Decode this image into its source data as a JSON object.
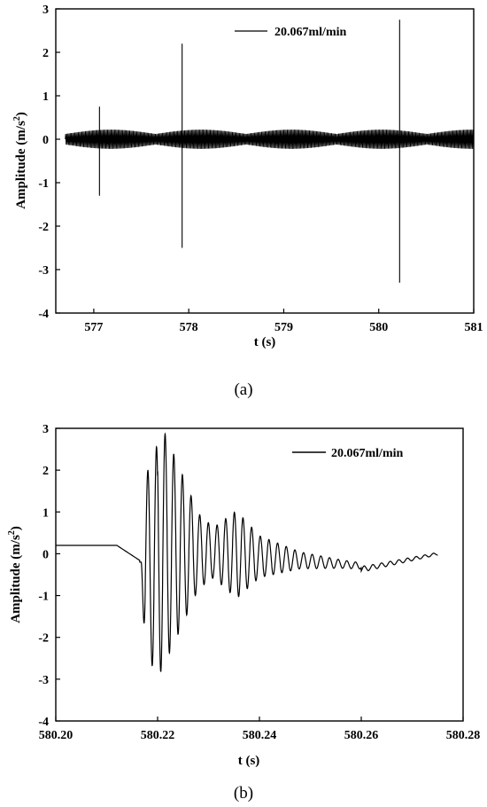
{
  "chart_data": [
    {
      "type": "line",
      "panel_label": "a",
      "xlabel": "t (s)",
      "ylabel": "Amplitude (m/s",
      "ylabel_sup": "2",
      "ylabel_close": ")",
      "xlim": [
        576.6,
        581.0
      ],
      "ylim": [
        -4,
        3
      ],
      "xticks": [
        577,
        578,
        579,
        580,
        581
      ],
      "yticks": [
        3,
        2,
        1,
        0,
        -1,
        -2,
        -3,
        -4
      ],
      "legend": "top-center",
      "grid": false,
      "series": [
        {
          "name": "20.067ml/min",
          "color": "#000000",
          "t_range": [
            576.7,
            581.0
          ],
          "background_amplitude": 0.22,
          "spikes": [
            {
              "t": 577.06,
              "max": 0.75,
              "min": -1.3
            },
            {
              "t": 577.93,
              "max": 2.2,
              "min": -2.5
            },
            {
              "t": 580.22,
              "max": 2.75,
              "min": -3.3
            }
          ]
        }
      ]
    },
    {
      "type": "line",
      "panel_label": "b",
      "xlabel": "t (s)",
      "ylabel": "Amplitude (m/s",
      "ylabel_sup": "2",
      "ylabel_close": ")",
      "xlim": [
        580.2,
        580.28
      ],
      "ylim": [
        -4,
        3
      ],
      "xticks": [
        "580.20",
        "580.22",
        "580.24",
        "580.26",
        "580.28"
      ],
      "yticks": [
        3,
        2,
        1,
        0,
        -1,
        -2,
        -3,
        -4
      ],
      "legend": "top-right",
      "grid": false,
      "series": [
        {
          "name": "20.067ml/min",
          "color": "#000000",
          "x": [
            580.2,
            580.205,
            580.21,
            580.214,
            580.216,
            580.2172,
            580.2185,
            580.22,
            580.2212,
            580.2225,
            580.225,
            580.228,
            580.23,
            580.233,
            580.236,
            580.238,
            580.241,
            580.245,
            580.25,
            580.255,
            580.26,
            580.263,
            580.267,
            580.271,
            580.275
          ],
          "y": [
            0.2,
            0.22,
            0.18,
            0.1,
            -0.1,
            -1.6,
            2.1,
            -3.1,
            2.7,
            -3.3,
            1.4,
            1.3,
            -0.9,
            0.8,
            1.2,
            1.0,
            0.6,
            0.35,
            0.2,
            0.0,
            -0.2,
            -0.3,
            -0.15,
            -0.05,
            0.0
          ],
          "envelope": [
            {
              "t": 580.2175,
              "a": 2.0
            },
            {
              "t": 580.2205,
              "a": 3.0
            },
            {
              "t": 580.2245,
              "a": 1.9
            },
            {
              "t": 580.228,
              "a": 0.9
            },
            {
              "t": 580.231,
              "a": 0.6
            },
            {
              "t": 580.2355,
              "a": 1.05
            },
            {
              "t": 580.24,
              "a": 0.5
            },
            {
              "t": 580.248,
              "a": 0.2
            },
            {
              "t": 580.256,
              "a": 0.1
            },
            {
              "t": 580.262,
              "a": 0.06
            },
            {
              "t": 580.275,
              "a": 0.03
            }
          ]
        }
      ]
    }
  ]
}
